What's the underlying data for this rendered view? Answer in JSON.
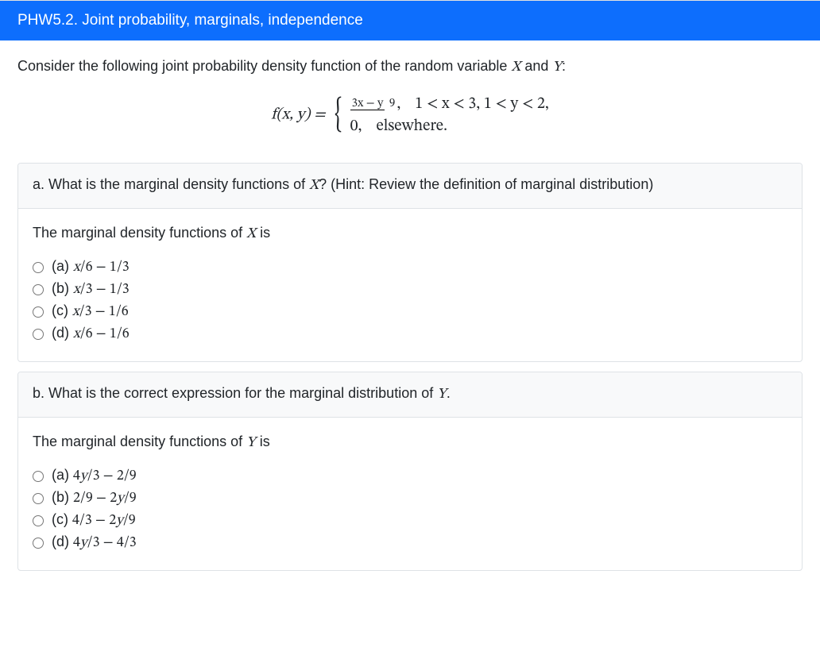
{
  "header": {
    "title": "PHW5.2. Joint probability, marginals, independence",
    "bg_color": "#0d6efd",
    "text_color": "#ffffff"
  },
  "intro_html": "Consider the following joint probability density function of the random variable <span class='mathvar'>X</span> and <span class='mathvar'>Y</span>:",
  "equation": {
    "lhs": "f(x, y) = ",
    "case1_expr_num": "3x − y",
    "case1_expr_den": "9",
    "case1_comma": ",",
    "case1_cond": "1 < x < 3,  1 < y < 2,",
    "case2_expr": "0,",
    "case2_cond": "elsewhere."
  },
  "questions": [
    {
      "id": "qa",
      "header_html": "a. What is the marginal density functions of <span class='mathvar'>X</span>? (Hint: Review the definition of marginal distribution)",
      "prompt_html": "The marginal density functions of <span class='mathvar'>X</span> is",
      "options": [
        "(a) <span class='mathvar'>x</span><span class='mathup'>/6 − 1/3</span>",
        "(b) <span class='mathvar'>x</span><span class='mathup'>/3 − 1/3</span>",
        "(c) <span class='mathvar'>x</span><span class='mathup'>/3 − 1/6</span>",
        "(d) <span class='mathvar'>x</span><span class='mathup'>/6 − 1/6</span>"
      ]
    },
    {
      "id": "qb",
      "header_html": "b. What is the correct expression for the marginal distribution of <span class='mathvar'>Y</span>.",
      "prompt_html": "The marginal density functions of <span class='mathvar'>Y</span> is",
      "options": [
        "(a) <span class='mathup'>4</span><span class='mathvar'>y</span><span class='mathup'>/3 − 2/9</span>",
        "(b) <span class='mathup'>2/9 − 2</span><span class='mathvar'>y</span><span class='mathup'>/9</span>",
        "(c) <span class='mathup'>4/3 − 2</span><span class='mathvar'>y</span><span class='mathup'>/9</span>",
        "(d) <span class='mathup'>4</span><span class='mathvar'>y</span><span class='mathup'>/3 − 4/3</span>"
      ]
    }
  ],
  "style": {
    "box_border": "#dee2e6",
    "box_header_bg": "#f8f9fa",
    "body_bg": "#ffffff",
    "font": "Segoe UI"
  }
}
